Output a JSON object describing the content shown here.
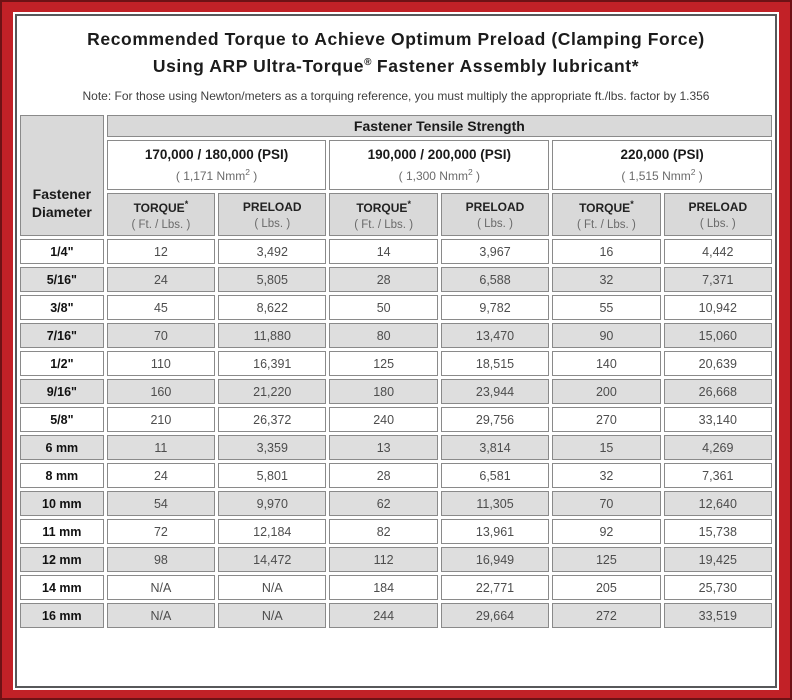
{
  "title": {
    "line1": "Recommended Torque to Achieve Optimum Preload (Clamping Force)",
    "line2_pre": "Using ARP Ultra-Torque",
    "line2_sup": "®",
    "line2_post": " Fastener Assembly lubricant*"
  },
  "note": "Note: For those using Newton/meters as a torquing reference, you must multiply the appropriate ft./lbs. factor by 1.356",
  "colors": {
    "frame_red": "#c22127",
    "frame_edge_dark": "#6e1215",
    "header_gray": "#d9d9d9",
    "row_alt_gray": "#dedede",
    "cell_border_gray": "#8a8a8a"
  },
  "table": {
    "corner_label": "Fastener Diameter",
    "group_header": "Fastener Tensile Strength",
    "groups": [
      {
        "psi": "170,000 / 180,000 (PSI)",
        "nmm": {
          "pre": "( 1,171 Nmm",
          "sup": "2",
          "post": " )"
        }
      },
      {
        "psi": "190,000 / 200,000 (PSI)",
        "nmm": {
          "pre": "( 1,300 Nmm",
          "sup": "2",
          "post": " )"
        }
      },
      {
        "psi": "220,000 (PSI)",
        "nmm": {
          "pre": "( 1,515 Nmm",
          "sup": "2",
          "post": " )"
        }
      }
    ],
    "sub": {
      "torque_label": "TORQUE",
      "torque_sup": "*",
      "torque_unit": "( Ft. / Lbs. )",
      "preload_label": "PRELOAD",
      "preload_unit": "( Lbs. )"
    },
    "rows": [
      {
        "diameter": "1/4\"",
        "values": [
          "12",
          "3,492",
          "14",
          "3,967",
          "16",
          "4,442"
        ]
      },
      {
        "diameter": "5/16\"",
        "values": [
          "24",
          "5,805",
          "28",
          "6,588",
          "32",
          "7,371"
        ]
      },
      {
        "diameter": "3/8\"",
        "values": [
          "45",
          "8,622",
          "50",
          "9,782",
          "55",
          "10,942"
        ]
      },
      {
        "diameter": "7/16\"",
        "values": [
          "70",
          "11,880",
          "80",
          "13,470",
          "90",
          "15,060"
        ]
      },
      {
        "diameter": "1/2\"",
        "values": [
          "110",
          "16,391",
          "125",
          "18,515",
          "140",
          "20,639"
        ]
      },
      {
        "diameter": "9/16\"",
        "values": [
          "160",
          "21,220",
          "180",
          "23,944",
          "200",
          "26,668"
        ]
      },
      {
        "diameter": "5/8\"",
        "values": [
          "210",
          "26,372",
          "240",
          "29,756",
          "270",
          "33,140"
        ]
      },
      {
        "diameter": "6 mm",
        "values": [
          "11",
          "3,359",
          "13",
          "3,814",
          "15",
          "4,269"
        ]
      },
      {
        "diameter": "8 mm",
        "values": [
          "24",
          "5,801",
          "28",
          "6,581",
          "32",
          "7,361"
        ]
      },
      {
        "diameter": "10 mm",
        "values": [
          "54",
          "9,970",
          "62",
          "11,305",
          "70",
          "12,640"
        ]
      },
      {
        "diameter": "11 mm",
        "values": [
          "72",
          "12,184",
          "82",
          "13,961",
          "92",
          "15,738"
        ]
      },
      {
        "diameter": "12 mm",
        "values": [
          "98",
          "14,472",
          "112",
          "16,949",
          "125",
          "19,425"
        ]
      },
      {
        "diameter": "14 mm",
        "values": [
          "N/A",
          "N/A",
          "184",
          "22,771",
          "205",
          "25,730"
        ]
      },
      {
        "diameter": "16 mm",
        "values": [
          "N/A",
          "N/A",
          "244",
          "29,664",
          "272",
          "33,519"
        ]
      }
    ]
  }
}
